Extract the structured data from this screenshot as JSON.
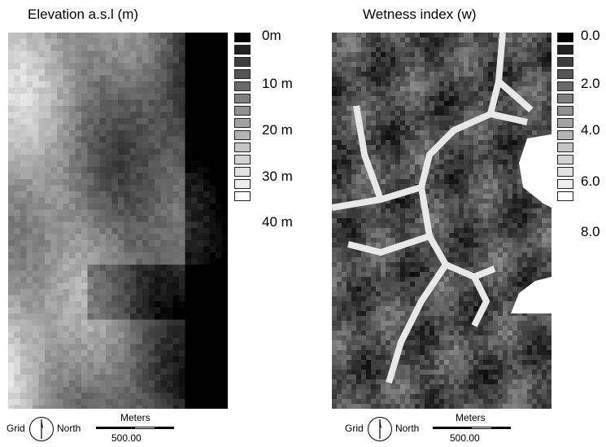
{
  "left_map": {
    "title": "Elevation a.s.l (m)",
    "legend_labels": [
      "0m",
      "10 m",
      "20 m",
      "30 m",
      "40 m"
    ],
    "legend_shades": [
      "#000000",
      "#222222",
      "#3f3f3f",
      "#555555",
      "#6a6a6a",
      "#7f7f7f",
      "#919191",
      "#a3a3a3",
      "#b3b3b3",
      "#c4c4c4",
      "#d3d3d3",
      "#e1e1e1",
      "#eeeeee",
      "#ffffff"
    ]
  },
  "right_map": {
    "title": "Wetness index (w)",
    "legend_labels": [
      "0.0",
      "2.0",
      "4.0",
      "6.0",
      "8.0"
    ],
    "legend_shades": [
      "#000000",
      "#222222",
      "#3f3f3f",
      "#555555",
      "#6a6a6a",
      "#7f7f7f",
      "#919191",
      "#a3a3a3",
      "#b3b3b3",
      "#c4c4c4",
      "#d3d3d3",
      "#e1e1e1",
      "#eeeeee",
      "#ffffff"
    ]
  },
  "footer": {
    "grid_label": "Grid",
    "north_label": "North",
    "scale_units": "Meters",
    "scale_value": "500.00"
  }
}
